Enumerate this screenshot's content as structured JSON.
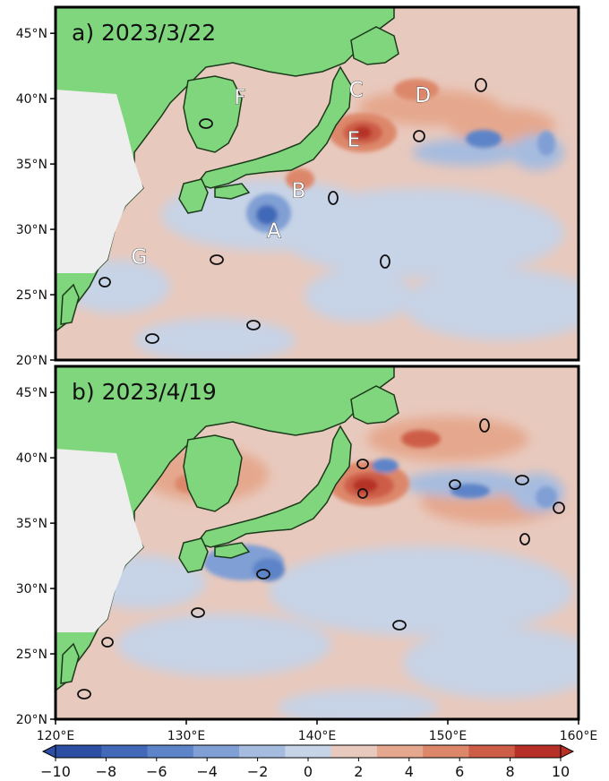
{
  "panels": [
    {
      "title": "a) 2023/3/22",
      "labels": [
        {
          "text": "F",
          "lon": 134.1,
          "lat": 40.1
        },
        {
          "text": "C",
          "lon": 143.0,
          "lat": 40.7
        },
        {
          "text": "D",
          "lon": 148.1,
          "lat": 40.3
        },
        {
          "text": "E",
          "lon": 142.8,
          "lat": 36.9
        },
        {
          "text": "B",
          "lon": 138.6,
          "lat": 33.0
        },
        {
          "text": "A",
          "lon": 136.7,
          "lat": 29.9
        },
        {
          "text": "G",
          "lon": 126.4,
          "lat": 27.9
        }
      ]
    },
    {
      "title": "b) 2023/4/19",
      "labels": []
    }
  ],
  "axes": {
    "lon_range": [
      120,
      160
    ],
    "lat_range": [
      20,
      47
    ],
    "x_ticks": [
      "120°E",
      "130°E",
      "140°E",
      "150°E",
      "160°E"
    ],
    "x_tick_values": [
      120,
      130,
      140,
      150,
      160
    ],
    "y_ticks": [
      "20°N",
      "25°N",
      "30°N",
      "35°N",
      "40°N",
      "45°N"
    ],
    "y_tick_values": [
      20,
      25,
      30,
      35,
      40,
      45
    ]
  },
  "colorbar": {
    "range": [
      -10,
      10
    ],
    "tick_labels": [
      "−10",
      "−8",
      "−6",
      "−4",
      "−2",
      "0",
      "2",
      "4",
      "6",
      "8",
      "10"
    ],
    "tick_values": [
      -10,
      -8,
      -6,
      -4,
      -2,
      0,
      2,
      4,
      6,
      8,
      10
    ],
    "colors": [
      "#2c4fa3",
      "#4169b8",
      "#5d84c8",
      "#809fd4",
      "#a6bcdf",
      "#c7d3e6",
      "#e8c9bd",
      "#e5a88e",
      "#dd876a",
      "#cd5d47",
      "#b63027"
    ]
  },
  "colors": {
    "land": "#7fd67c",
    "missing": "#eeeeee",
    "coast": "#1b3a1b",
    "ocean_pos_weak": "#e8c9bd",
    "ocean_neg_weak": "#c7d3e6"
  }
}
